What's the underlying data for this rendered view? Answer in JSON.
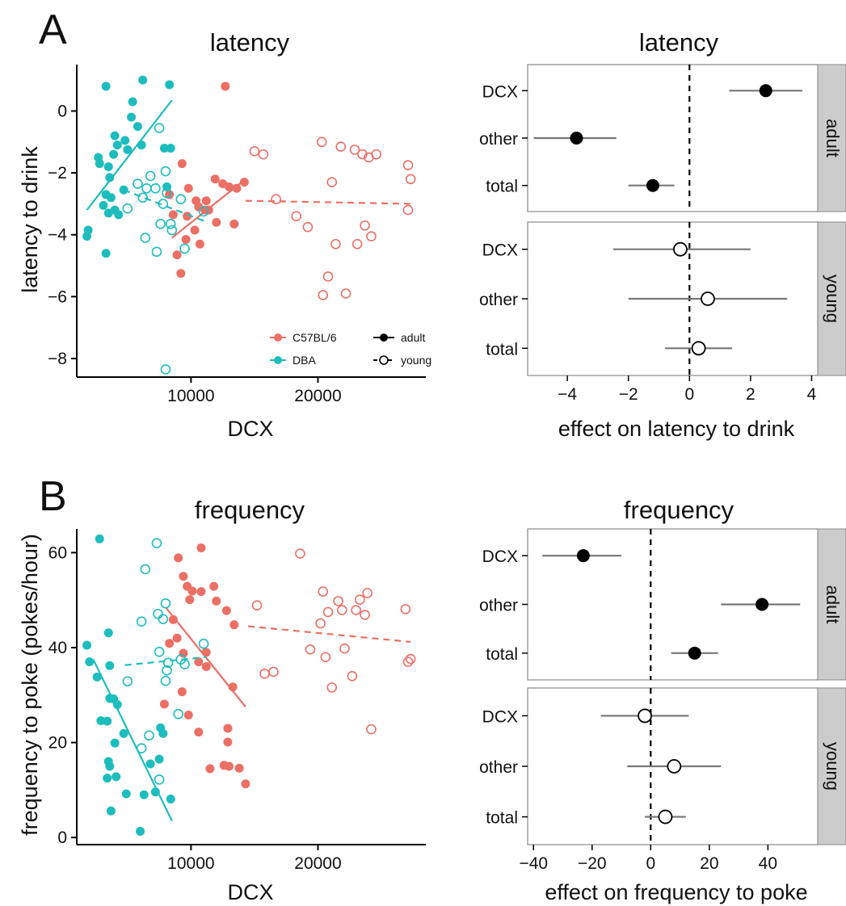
{
  "panels": [
    "A",
    "B"
  ],
  "colors": {
    "c57": "#EC6F66",
    "dba": "#1EBDBD",
    "ci": "#777777",
    "strip": "#CCCCCC",
    "point": "#000000"
  },
  "legend": {
    "strains": [
      "C57BL/6",
      "DBA"
    ],
    "ages": [
      "adult",
      "young"
    ]
  },
  "chart_data": [
    {
      "type": "scatter",
      "title": "latency",
      "xlabel": "DCX",
      "ylabel": "latency to drink",
      "xlim": [
        1000,
        28500
      ],
      "ylim": [
        -8.6,
        1.5
      ],
      "xticks": [
        10000,
        20000
      ],
      "yticks": [
        0,
        -2,
        -4,
        -6,
        -8
      ],
      "series": [
        {
          "name": "C57BL/6 adult",
          "strain": "C57BL/6",
          "age": "adult",
          "points": [
            [
              12700,
              0.8
            ],
            [
              9300,
              -1.7
            ],
            [
              8300,
              -2.7
            ],
            [
              9800,
              -2.5
            ],
            [
              10400,
              -2.9
            ],
            [
              10600,
              -3.1
            ],
            [
              11100,
              -3.2
            ],
            [
              11900,
              -2.2
            ],
            [
              12500,
              -2.35
            ],
            [
              13000,
              -2.45
            ],
            [
              13600,
              -2.5
            ],
            [
              14200,
              -2.3
            ],
            [
              11200,
              -2.9
            ],
            [
              12000,
              -3.6
            ],
            [
              13400,
              -3.65
            ],
            [
              9700,
              -3.4
            ],
            [
              10300,
              -3.85
            ],
            [
              10700,
              -4.3
            ],
            [
              8900,
              -4.65
            ],
            [
              9600,
              -4.15
            ],
            [
              9200,
              -5.25
            ],
            [
              8600,
              -3.35
            ],
            [
              11400,
              -3.2
            ]
          ],
          "fit": [
            [
              8500,
              -4.1
            ],
            [
              14300,
              -2.2
            ]
          ]
        },
        {
          "name": "C57BL/6 young",
          "strain": "C57BL/6",
          "age": "young",
          "points": [
            [
              15000,
              -1.3
            ],
            [
              15700,
              -1.4
            ],
            [
              16700,
              -2.85
            ],
            [
              18300,
              -3.4
            ],
            [
              19200,
              -3.75
            ],
            [
              20300,
              -1.0
            ],
            [
              20400,
              -5.95
            ],
            [
              20800,
              -5.35
            ],
            [
              21100,
              -2.3
            ],
            [
              21400,
              -4.3
            ],
            [
              21800,
              -1.15
            ],
            [
              22200,
              -5.9
            ],
            [
              22900,
              -1.25
            ],
            [
              23100,
              -4.3
            ],
            [
              23500,
              -1.4
            ],
            [
              23700,
              -3.7
            ],
            [
              24000,
              -1.5
            ],
            [
              24200,
              -4.05
            ],
            [
              24600,
              -1.4
            ],
            [
              27100,
              -1.75
            ],
            [
              27300,
              -2.2
            ],
            [
              27100,
              -3.2
            ]
          ],
          "fit": [
            [
              14300,
              -2.9
            ],
            [
              27300,
              -3.0
            ]
          ]
        },
        {
          "name": "DBA adult",
          "strain": "DBA",
          "age": "adult",
          "points": [
            [
              3300,
              0.8
            ],
            [
              6200,
              1.0
            ],
            [
              8300,
              0.85
            ],
            [
              5400,
              0.3
            ],
            [
              5800,
              -0.5
            ],
            [
              4000,
              -0.8
            ],
            [
              4800,
              -0.95
            ],
            [
              4200,
              -1.1
            ],
            [
              5000,
              -1.25
            ],
            [
              3900,
              -1.4
            ],
            [
              2700,
              -1.5
            ],
            [
              2800,
              -1.7
            ],
            [
              3500,
              -1.8
            ],
            [
              6100,
              -1.1
            ],
            [
              7900,
              -1.2
            ],
            [
              8400,
              -1.2
            ],
            [
              3600,
              -2.15
            ],
            [
              4700,
              -2.55
            ],
            [
              3300,
              -2.7
            ],
            [
              3100,
              -3.05
            ],
            [
              3700,
              -2.8
            ],
            [
              4000,
              -3.2
            ],
            [
              4300,
              -3.35
            ],
            [
              3500,
              -3.3
            ],
            [
              1800,
              -4.05
            ],
            [
              1900,
              -3.85
            ],
            [
              3300,
              -4.6
            ],
            [
              5300,
              -0.2
            ],
            [
              8100,
              -2.45
            ]
          ],
          "fit": [
            [
              1800,
              -3.2
            ],
            [
              8500,
              0.35
            ]
          ]
        },
        {
          "name": "DBA young",
          "strain": "DBA",
          "age": "young",
          "points": [
            [
              7500,
              -0.55
            ],
            [
              6800,
              -2.1
            ],
            [
              8000,
              -1.95
            ],
            [
              5800,
              -2.35
            ],
            [
              6500,
              -2.5
            ],
            [
              7200,
              -2.5
            ],
            [
              8100,
              -2.65
            ],
            [
              9200,
              -2.85
            ],
            [
              6200,
              -2.8
            ],
            [
              7800,
              -3.0
            ],
            [
              5000,
              -3.15
            ],
            [
              7600,
              -3.65
            ],
            [
              8400,
              -3.65
            ],
            [
              8500,
              -3.85
            ],
            [
              6400,
              -4.1
            ],
            [
              7300,
              -4.55
            ],
            [
              9500,
              -4.45
            ],
            [
              11000,
              -3.25
            ],
            [
              8000,
              -8.35
            ]
          ],
          "fit": [
            [
              4700,
              -2.55
            ],
            [
              11000,
              -3.55
            ]
          ]
        }
      ]
    },
    {
      "type": "scatter",
      "title": "frequency",
      "xlabel": "DCX",
      "ylabel": "frequency to poke (pokes/hour)",
      "xlim": [
        1000,
        28500
      ],
      "ylim": [
        -1.5,
        65
      ],
      "xticks": [
        10000,
        20000
      ],
      "yticks": [
        0,
        20,
        40,
        60
      ],
      "series": [
        {
          "name": "C57BL/6 adult",
          "strain": "C57BL/6",
          "age": "adult",
          "points": [
            [
              9000,
              58.9
            ],
            [
              10800,
              61.0
            ],
            [
              9400,
              55.0
            ],
            [
              9700,
              52.9
            ],
            [
              10100,
              51.9
            ],
            [
              10800,
              51.8
            ],
            [
              11800,
              52.9
            ],
            [
              12000,
              49.8
            ],
            [
              9900,
              50.1
            ],
            [
              12800,
              47.8
            ],
            [
              13400,
              44.8
            ],
            [
              8600,
              45.9
            ],
            [
              8900,
              42.0
            ],
            [
              8300,
              40.9
            ],
            [
              9400,
              38.8
            ],
            [
              10600,
              37.0
            ],
            [
              11200,
              39.0
            ],
            [
              11200,
              36.0
            ],
            [
              9300,
              30.7
            ],
            [
              7900,
              28.1
            ],
            [
              9800,
              25.8
            ],
            [
              10600,
              22.2
            ],
            [
              12900,
              23.0
            ],
            [
              12900,
              20.1
            ],
            [
              13300,
              31.7
            ],
            [
              11500,
              14.5
            ],
            [
              13000,
              15.0
            ],
            [
              12600,
              15.2
            ],
            [
              13800,
              14.6
            ],
            [
              14300,
              11.3
            ]
          ],
          "fit": [
            [
              8000,
              48.5
            ],
            [
              14300,
              27.5
            ]
          ]
        },
        {
          "name": "C57BL/6 young",
          "strain": "C57BL/6",
          "age": "young",
          "points": [
            [
              18600,
              59.8
            ],
            [
              15200,
              48.9
            ],
            [
              15800,
              34.5
            ],
            [
              16500,
              34.9
            ],
            [
              19400,
              39.6
            ],
            [
              20200,
              45.1
            ],
            [
              20400,
              51.8
            ],
            [
              20600,
              38.0
            ],
            [
              20800,
              47.5
            ],
            [
              21100,
              31.6
            ],
            [
              21600,
              49.8
            ],
            [
              21900,
              47.9
            ],
            [
              22100,
              39.8
            ],
            [
              22700,
              34.0
            ],
            [
              23000,
              47.9
            ],
            [
              23300,
              50.1
            ],
            [
              23900,
              51.5
            ],
            [
              23700,
              46.9
            ],
            [
              24200,
              22.8
            ],
            [
              26900,
              48.1
            ],
            [
              27100,
              37.0
            ],
            [
              27300,
              37.6
            ]
          ],
          "fit": [
            [
              14500,
              44.5
            ],
            [
              27300,
              41.2
            ]
          ]
        },
        {
          "name": "DBA adult",
          "strain": "DBA",
          "age": "adult",
          "points": [
            [
              2800,
              62.9
            ],
            [
              1800,
              40.5
            ],
            [
              2000,
              37.0
            ],
            [
              2600,
              33.8
            ],
            [
              3500,
              43.1
            ],
            [
              3600,
              36.2
            ],
            [
              3900,
              29.2
            ],
            [
              4200,
              28.0
            ],
            [
              3600,
              29.3
            ],
            [
              3400,
              24.5
            ],
            [
              4700,
              21.9
            ],
            [
              4000,
              19.9
            ],
            [
              3500,
              16.0
            ],
            [
              3400,
              12.5
            ],
            [
              3600,
              15.0
            ],
            [
              4100,
              12.8
            ],
            [
              4900,
              9.2
            ],
            [
              3700,
              5.6
            ],
            [
              6000,
              1.3
            ],
            [
              6300,
              9.0
            ],
            [
              6800,
              15.5
            ],
            [
              7200,
              9.6
            ],
            [
              7500,
              16.5
            ],
            [
              7800,
              21.9
            ],
            [
              8400,
              8.1
            ],
            [
              7600,
              23.1
            ],
            [
              2900,
              24.6
            ]
          ],
          "fit": [
            [
              2300,
              37.5
            ],
            [
              8500,
              3.5
            ]
          ]
        },
        {
          "name": "DBA young",
          "strain": "DBA",
          "age": "young",
          "points": [
            [
              7300,
              62.0
            ],
            [
              6400,
              56.5
            ],
            [
              6100,
              45.5
            ],
            [
              7400,
              47.1
            ],
            [
              7800,
              46.0
            ],
            [
              8000,
              49.3
            ],
            [
              7500,
              39.1
            ],
            [
              8200,
              36.8
            ],
            [
              8100,
              35.2
            ],
            [
              8000,
              33.0
            ],
            [
              9200,
              37.5
            ],
            [
              9500,
              36.5
            ],
            [
              11000,
              40.8
            ],
            [
              5000,
              32.9
            ],
            [
              6700,
              21.5
            ],
            [
              6100,
              18.8
            ],
            [
              9000,
              26.0
            ],
            [
              7500,
              12.2
            ]
          ],
          "fit": [
            [
              4800,
              36.3
            ],
            [
              11200,
              38.0
            ]
          ]
        }
      ]
    },
    {
      "type": "scatter",
      "title": "latency",
      "xlabel": "effect on latency to drink",
      "xlim": [
        -5.3,
        4.2
      ],
      "xticks": [
        -4,
        -2,
        0,
        2,
        4
      ],
      "strips": [
        "adult",
        "young"
      ],
      "categories": [
        "DCX",
        "other",
        "total"
      ],
      "effects": [
        {
          "facet": "adult",
          "term": "DCX",
          "est": 2.5,
          "lo": 1.3,
          "hi": 3.7
        },
        {
          "facet": "adult",
          "term": "other",
          "est": -3.7,
          "lo": -5.1,
          "hi": -2.4
        },
        {
          "facet": "adult",
          "term": "total",
          "est": -1.2,
          "lo": -2.0,
          "hi": -0.5
        },
        {
          "facet": "young",
          "term": "DCX",
          "est": -0.3,
          "lo": -2.5,
          "hi": 2.0
        },
        {
          "facet": "young",
          "term": "other",
          "est": 0.6,
          "lo": -2.0,
          "hi": 3.2
        },
        {
          "facet": "young",
          "term": "total",
          "est": 0.3,
          "lo": -0.8,
          "hi": 1.4
        }
      ]
    },
    {
      "type": "scatter",
      "title": "frequency",
      "xlabel": "effect on frequency to poke",
      "xlim": [
        -42,
        57
      ],
      "xticks": [
        -40,
        -20,
        0,
        20,
        40
      ],
      "strips": [
        "adult",
        "young"
      ],
      "categories": [
        "DCX",
        "other",
        "total"
      ],
      "effects": [
        {
          "facet": "adult",
          "term": "DCX",
          "est": -23,
          "lo": -37,
          "hi": -10
        },
        {
          "facet": "adult",
          "term": "other",
          "est": 38,
          "lo": 24,
          "hi": 51
        },
        {
          "facet": "adult",
          "term": "total",
          "est": 15,
          "lo": 7,
          "hi": 23
        },
        {
          "facet": "young",
          "term": "DCX",
          "est": -2,
          "lo": -17,
          "hi": 13
        },
        {
          "facet": "young",
          "term": "other",
          "est": 8,
          "lo": -8,
          "hi": 24
        },
        {
          "facet": "young",
          "term": "total",
          "est": 5,
          "lo": -2,
          "hi": 12
        }
      ]
    }
  ]
}
